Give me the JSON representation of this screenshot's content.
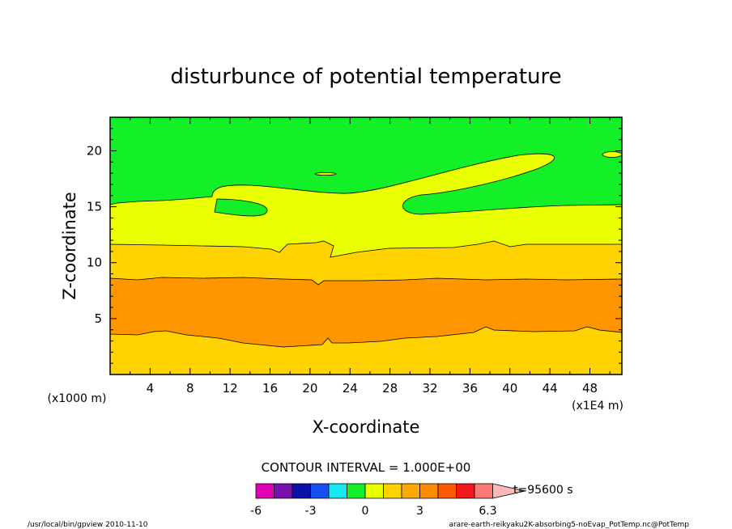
{
  "chart_data": {
    "type": "heatmap",
    "title": "disturbunce of potential temperature",
    "xlabel": "X-coordinate",
    "ylabel": "Z-coordinate",
    "x_unit_label": "(x1E4 m)",
    "y_unit_label": "(x1000 m)",
    "xlim": [
      0,
      51.2
    ],
    "ylim": [
      0,
      23
    ],
    "x_ticks": [
      "4",
      "8",
      "12",
      "16",
      "20",
      "24",
      "28",
      "32",
      "36",
      "40",
      "44",
      "48"
    ],
    "y_ticks": [
      "5",
      "10",
      "15",
      "20"
    ],
    "contour_interval_label": "CONTOUR INTERVAL = 1.000E+00",
    "time_label": "t=95600 s",
    "colorbar": {
      "tick_labels": [
        "-6",
        "-3",
        "0",
        "3",
        "6.3"
      ],
      "levels": [
        -6,
        -5,
        -4,
        -3,
        -2,
        -1,
        0,
        1,
        2,
        3,
        4,
        5,
        6,
        6.3
      ],
      "colors": [
        "#e000b8",
        "#7a10b0",
        "#0a10a8",
        "#1450f0",
        "#14e8f0",
        "#14f028",
        "#e8ff00",
        "#ffd200",
        "#ffaa00",
        "#ff8c00",
        "#ff5a00",
        "#f01818",
        "#ff7878",
        "#ffb8b8"
      ]
    },
    "bands": [
      {
        "range": "2-3",
        "color": "#ffd200"
      },
      {
        "range": "3-4",
        "color": "#ff9600"
      },
      {
        "range": "2-3",
        "color": "#ffd200"
      },
      {
        "range": "1-2",
        "color": "#eaff00"
      },
      {
        "range": "0-1",
        "color": "#14f028"
      }
    ]
  },
  "footer": {
    "left": "/usr/local/bin/gpview  2010-11-10",
    "right": "arare-earth-reikyaku2K-absorbing5-noEvap_PotTemp.nc@PotTemp"
  }
}
